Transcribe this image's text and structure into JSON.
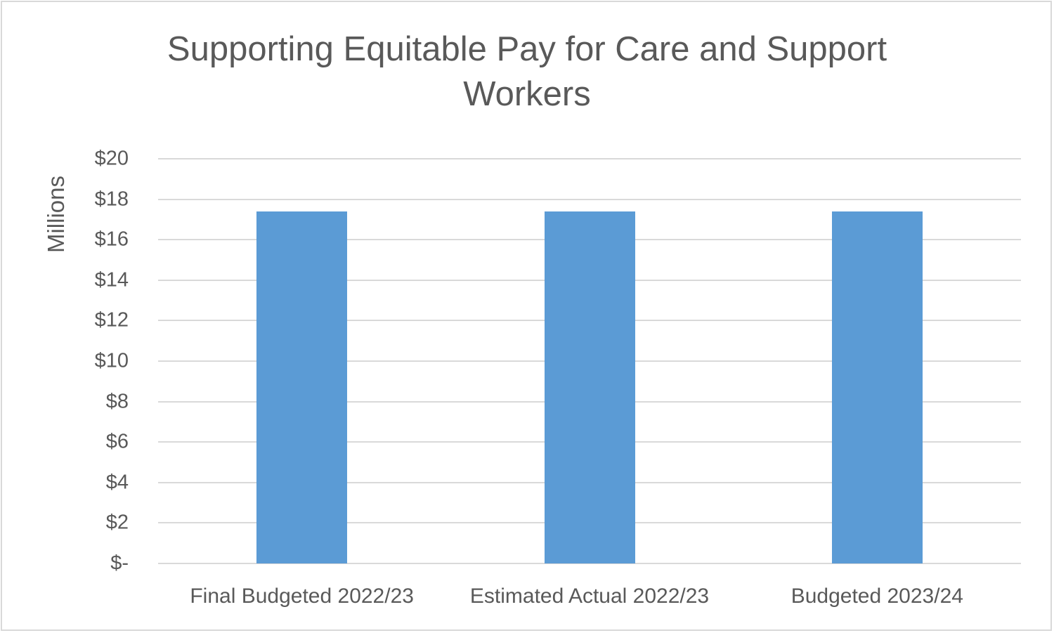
{
  "chart_data": {
    "type": "bar",
    "title": "Supporting Equitable Pay for Care and Support Workers",
    "title_lines": [
      "Supporting Equitable Pay for Care and Support",
      "Workers"
    ],
    "xlabel": "",
    "ylabel": "Millions",
    "categories": [
      "Final Budgeted 2022/23",
      "Estimated Actual 2022/23",
      "Budgeted 2023/24"
    ],
    "values": [
      17.4,
      17.4,
      17.4
    ],
    "ylim": [
      0,
      20
    ],
    "yticks": [
      "$-",
      "$2",
      "$4",
      "$6",
      "$8",
      "$10",
      "$12",
      "$14",
      "$16",
      "$18",
      "$20"
    ],
    "grid": true,
    "legend": null,
    "bar_color": "#5b9bd5"
  }
}
